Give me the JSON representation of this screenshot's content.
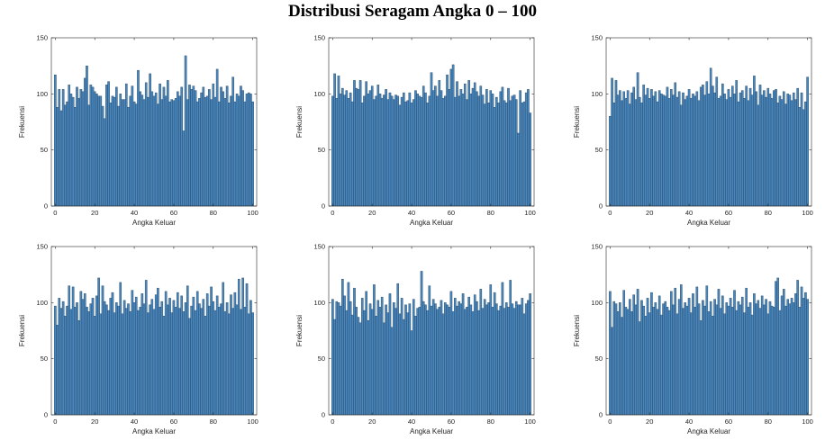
{
  "title": "Distribusi Seragam Angka 0 – 100",
  "chart_data": [
    {
      "type": "bar",
      "xlabel": "Angka Keluar",
      "ylabel": "Frekuensi",
      "xlim": [
        -2,
        102
      ],
      "ylim": [
        0,
        150
      ],
      "xticks": [
        "0",
        "20",
        "40",
        "60",
        "80",
        "100"
      ],
      "yticks": [
        "0",
        "50",
        "100",
        "150"
      ],
      "grid": false,
      "bar_color": "#4a87bd",
      "x": [
        0,
        1,
        2,
        3,
        4,
        5,
        6,
        7,
        8,
        9,
        10,
        11,
        12,
        13,
        14,
        15,
        16,
        17,
        18,
        19,
        20,
        21,
        22,
        23,
        24,
        25,
        26,
        27,
        28,
        29,
        30,
        31,
        32,
        33,
        34,
        35,
        36,
        37,
        38,
        39,
        40,
        41,
        42,
        43,
        44,
        45,
        46,
        47,
        48,
        49,
        50,
        51,
        52,
        53,
        54,
        55,
        56,
        57,
        58,
        59,
        60,
        61,
        62,
        63,
        64,
        65,
        66,
        67,
        68,
        69,
        70,
        71,
        72,
        73,
        74,
        75,
        76,
        77,
        78,
        79,
        80,
        81,
        82,
        83,
        84,
        85,
        86,
        87,
        88,
        89,
        90,
        91,
        92,
        93,
        94,
        95,
        96,
        97,
        98,
        99,
        100
      ],
      "values": [
        117,
        88,
        104,
        85,
        104,
        90,
        93,
        108,
        100,
        97,
        88,
        106,
        96,
        104,
        102,
        114,
        125,
        90,
        108,
        106,
        102,
        100,
        98,
        98,
        89,
        78,
        108,
        111,
        92,
        98,
        97,
        106,
        89,
        100,
        95,
        95,
        109,
        88,
        98,
        107,
        93,
        91,
        121,
        102,
        99,
        95,
        110,
        97,
        118,
        102,
        98,
        101,
        91,
        109,
        95,
        106,
        98,
        112,
        93,
        95,
        94,
        96,
        102,
        98,
        106,
        67,
        134,
        95,
        108,
        104,
        107,
        103,
        93,
        96,
        101,
        106,
        97,
        98,
        104,
        95,
        109,
        97,
        122,
        93,
        106,
        102,
        96,
        107,
        92,
        98,
        115,
        93,
        100,
        98,
        107,
        103,
        93,
        100,
        101,
        100,
        93
      ]
    },
    {
      "type": "bar",
      "xlabel": "Angka Keluar",
      "ylabel": "Frekuensi",
      "xlim": [
        -2,
        102
      ],
      "ylim": [
        0,
        150
      ],
      "xticks": [
        "0",
        "20",
        "40",
        "60",
        "80",
        "100"
      ],
      "yticks": [
        "0",
        "50",
        "100",
        "150"
      ],
      "grid": false,
      "bar_color": "#4a87bd",
      "x": [
        0,
        1,
        2,
        3,
        4,
        5,
        6,
        7,
        8,
        9,
        10,
        11,
        12,
        13,
        14,
        15,
        16,
        17,
        18,
        19,
        20,
        21,
        22,
        23,
        24,
        25,
        26,
        27,
        28,
        29,
        30,
        31,
        32,
        33,
        34,
        35,
        36,
        37,
        38,
        39,
        40,
        41,
        42,
        43,
        44,
        45,
        46,
        47,
        48,
        49,
        50,
        51,
        52,
        53,
        54,
        55,
        56,
        57,
        58,
        59,
        60,
        61,
        62,
        63,
        64,
        65,
        66,
        67,
        68,
        69,
        70,
        71,
        72,
        73,
        74,
        75,
        76,
        77,
        78,
        79,
        80,
        81,
        82,
        83,
        84,
        85,
        86,
        87,
        88,
        89,
        90,
        91,
        92,
        93,
        94,
        95,
        96,
        97,
        98,
        99,
        100
      ],
      "values": [
        98,
        118,
        96,
        116,
        100,
        105,
        99,
        103,
        96,
        101,
        93,
        112,
        105,
        104,
        112,
        92,
        98,
        111,
        100,
        103,
        107,
        95,
        98,
        108,
        100,
        96,
        99,
        104,
        95,
        101,
        98,
        95,
        99,
        98,
        90,
        97,
        101,
        93,
        94,
        101,
        92,
        95,
        103,
        100,
        98,
        97,
        107,
        101,
        92,
        98,
        119,
        103,
        107,
        98,
        112,
        103,
        96,
        98,
        117,
        104,
        122,
        126,
        97,
        111,
        98,
        104,
        100,
        109,
        95,
        112,
        100,
        105,
        110,
        102,
        98,
        107,
        99,
        91,
        104,
        92,
        103,
        100,
        88,
        97,
        92,
        102,
        106,
        94,
        92,
        105,
        94,
        98,
        99,
        95,
        65,
        103,
        92,
        93,
        101,
        104,
        83
      ]
    },
    {
      "type": "bar",
      "xlabel": "Angka Keluar",
      "ylabel": "Frekuensi",
      "xlim": [
        -2,
        102
      ],
      "ylim": [
        0,
        150
      ],
      "xticks": [
        "0",
        "20",
        "40",
        "60",
        "80",
        "100"
      ],
      "yticks": [
        "0",
        "50",
        "100",
        "150"
      ],
      "grid": false,
      "bar_color": "#4a87bd",
      "x": [
        0,
        1,
        2,
        3,
        4,
        5,
        6,
        7,
        8,
        9,
        10,
        11,
        12,
        13,
        14,
        15,
        16,
        17,
        18,
        19,
        20,
        21,
        22,
        23,
        24,
        25,
        26,
        27,
        28,
        29,
        30,
        31,
        32,
        33,
        34,
        35,
        36,
        37,
        38,
        39,
        40,
        41,
        42,
        43,
        44,
        45,
        46,
        47,
        48,
        49,
        50,
        51,
        52,
        53,
        54,
        55,
        56,
        57,
        58,
        59,
        60,
        61,
        62,
        63,
        64,
        65,
        66,
        67,
        68,
        69,
        70,
        71,
        72,
        73,
        74,
        75,
        76,
        77,
        78,
        79,
        80,
        81,
        82,
        83,
        84,
        85,
        86,
        87,
        88,
        89,
        90,
        91,
        92,
        93,
        94,
        95,
        96,
        97,
        98,
        99,
        100
      ],
      "values": [
        80,
        114,
        92,
        112,
        99,
        103,
        94,
        102,
        96,
        103,
        91,
        101,
        106,
        95,
        119,
        97,
        92,
        108,
        99,
        105,
        96,
        104,
        98,
        102,
        93,
        103,
        100,
        99,
        98,
        106,
        96,
        104,
        99,
        110,
        97,
        102,
        90,
        101,
        95,
        98,
        104,
        96,
        100,
        98,
        102,
        94,
        106,
        108,
        99,
        111,
        100,
        123,
        107,
        101,
        115,
        96,
        98,
        109,
        100,
        95,
        104,
        97,
        107,
        100,
        112,
        93,
        101,
        103,
        96,
        107,
        94,
        105,
        99,
        116,
        102,
        90,
        108,
        99,
        103,
        97,
        105,
        100,
        96,
        103,
        104,
        92,
        98,
        95,
        102,
        91,
        100,
        99,
        94,
        101,
        95,
        105,
        88,
        101,
        86,
        93,
        115
      ]
    },
    {
      "type": "bar",
      "xlabel": "Angka Keluar",
      "ylabel": "Frekuensi",
      "xlim": [
        -2,
        102
      ],
      "ylim": [
        0,
        150
      ],
      "xticks": [
        "0",
        "20",
        "40",
        "60",
        "80",
        "100"
      ],
      "yticks": [
        "0",
        "50",
        "100",
        "150"
      ],
      "grid": false,
      "bar_color": "#4a87bd",
      "x": [
        0,
        1,
        2,
        3,
        4,
        5,
        6,
        7,
        8,
        9,
        10,
        11,
        12,
        13,
        14,
        15,
        16,
        17,
        18,
        19,
        20,
        21,
        22,
        23,
        24,
        25,
        26,
        27,
        28,
        29,
        30,
        31,
        32,
        33,
        34,
        35,
        36,
        37,
        38,
        39,
        40,
        41,
        42,
        43,
        44,
        45,
        46,
        47,
        48,
        49,
        50,
        51,
        52,
        53,
        54,
        55,
        56,
        57,
        58,
        59,
        60,
        61,
        62,
        63,
        64,
        65,
        66,
        67,
        68,
        69,
        70,
        71,
        72,
        73,
        74,
        75,
        76,
        77,
        78,
        79,
        80,
        81,
        82,
        83,
        84,
        85,
        86,
        87,
        88,
        89,
        90,
        91,
        92,
        93,
        94,
        95,
        96,
        97,
        98,
        99,
        100
      ],
      "values": [
        97,
        80,
        104,
        95,
        101,
        88,
        97,
        115,
        94,
        114,
        96,
        100,
        84,
        110,
        103,
        108,
        96,
        92,
        99,
        104,
        88,
        106,
        122,
        90,
        115,
        101,
        98,
        93,
        104,
        109,
        91,
        100,
        97,
        118,
        90,
        102,
        95,
        99,
        92,
        111,
        100,
        105,
        93,
        96,
        108,
        99,
        120,
        91,
        98,
        103,
        94,
        107,
        113,
        96,
        101,
        88,
        110,
        98,
        104,
        91,
        102,
        96,
        109,
        95,
        106,
        92,
        100,
        115,
        86,
        97,
        105,
        93,
        110,
        99,
        95,
        103,
        88,
        108,
        97,
        114,
        101,
        93,
        106,
        96,
        99,
        118,
        92,
        100,
        90,
        107,
        95,
        109,
        98,
        121,
        94,
        122,
        96,
        117,
        90,
        102,
        91
      ]
    },
    {
      "type": "bar",
      "xlabel": "Angka Keluar",
      "ylabel": "Frekuensi",
      "xlim": [
        -2,
        102
      ],
      "ylim": [
        0,
        150
      ],
      "xticks": [
        "0",
        "20",
        "40",
        "60",
        "80",
        "100"
      ],
      "yticks": [
        "0",
        "50",
        "100",
        "150"
      ],
      "grid": false,
      "bar_color": "#4a87bd",
      "x": [
        0,
        1,
        2,
        3,
        4,
        5,
        6,
        7,
        8,
        9,
        10,
        11,
        12,
        13,
        14,
        15,
        16,
        17,
        18,
        19,
        20,
        21,
        22,
        23,
        24,
        25,
        26,
        27,
        28,
        29,
        30,
        31,
        32,
        33,
        34,
        35,
        36,
        37,
        38,
        39,
        40,
        41,
        42,
        43,
        44,
        45,
        46,
        47,
        48,
        49,
        50,
        51,
        52,
        53,
        54,
        55,
        56,
        57,
        58,
        59,
        60,
        61,
        62,
        63,
        64,
        65,
        66,
        67,
        68,
        69,
        70,
        71,
        72,
        73,
        74,
        75,
        76,
        77,
        78,
        79,
        80,
        81,
        82,
        83,
        84,
        85,
        86,
        87,
        88,
        89,
        90,
        91,
        92,
        93,
        94,
        95,
        96,
        97,
        98,
        99,
        100
      ],
      "values": [
        103,
        85,
        101,
        100,
        97,
        121,
        106,
        93,
        118,
        101,
        89,
        113,
        96,
        87,
        82,
        104,
        93,
        110,
        84,
        99,
        94,
        116,
        88,
        102,
        96,
        105,
        82,
        98,
        91,
        108,
        78,
        100,
        95,
        117,
        90,
        104,
        85,
        98,
        91,
        99,
        75,
        103,
        88,
        95,
        96,
        128,
        101,
        98,
        93,
        115,
        97,
        103,
        99,
        94,
        96,
        102,
        90,
        100,
        98,
        96,
        110,
        92,
        104,
        97,
        101,
        99,
        108,
        94,
        96,
        105,
        98,
        92,
        107,
        101,
        93,
        112,
        95,
        103,
        98,
        100,
        116,
        96,
        109,
        99,
        93,
        97,
        118,
        95,
        100,
        96,
        120,
        99,
        95,
        101,
        98,
        98,
        104,
        90,
        99,
        102,
        108
      ]
    },
    {
      "type": "bar",
      "xlabel": "Angka Keluar",
      "ylabel": "Frekuensi",
      "xlim": [
        -2,
        102
      ],
      "ylim": [
        0,
        150
      ],
      "xticks": [
        "0",
        "20",
        "40",
        "60",
        "80",
        "100"
      ],
      "yticks": [
        "0",
        "50",
        "100",
        "150"
      ],
      "grid": false,
      "bar_color": "#4a87bd",
      "x": [
        0,
        1,
        2,
        3,
        4,
        5,
        6,
        7,
        8,
        9,
        10,
        11,
        12,
        13,
        14,
        15,
        16,
        17,
        18,
        19,
        20,
        21,
        22,
        23,
        24,
        25,
        26,
        27,
        28,
        29,
        30,
        31,
        32,
        33,
        34,
        35,
        36,
        37,
        38,
        39,
        40,
        41,
        42,
        43,
        44,
        45,
        46,
        47,
        48,
        49,
        50,
        51,
        52,
        53,
        54,
        55,
        56,
        57,
        58,
        59,
        60,
        61,
        62,
        63,
        64,
        65,
        66,
        67,
        68,
        69,
        70,
        71,
        72,
        73,
        74,
        75,
        76,
        77,
        78,
        79,
        80,
        81,
        82,
        83,
        84,
        85,
        86,
        87,
        88,
        89,
        90,
        91,
        92,
        93,
        94,
        95,
        96,
        97,
        98,
        99,
        100
      ],
      "values": [
        110,
        78,
        101,
        99,
        92,
        100,
        87,
        111,
        96,
        94,
        103,
        92,
        107,
        98,
        112,
        83,
        102,
        97,
        88,
        104,
        91,
        109,
        96,
        100,
        94,
        106,
        89,
        99,
        101,
        96,
        93,
        110,
        98,
        113,
        90,
        103,
        116,
        95,
        100,
        97,
        104,
        91,
        108,
        96,
        114,
        99,
        84,
        102,
        97,
        115,
        92,
        101,
        88,
        103,
        98,
        112,
        95,
        106,
        90,
        100,
        97,
        104,
        96,
        111,
        93,
        101,
        98,
        105,
        91,
        113,
        96,
        100,
        89,
        108,
        99,
        102,
        95,
        106,
        98,
        103,
        90,
        101,
        97,
        96,
        119,
        122,
        93,
        106,
        112,
        97,
        103,
        99,
        104,
        100,
        108,
        120,
        96,
        114,
        104,
        109,
        103
      ]
    }
  ]
}
